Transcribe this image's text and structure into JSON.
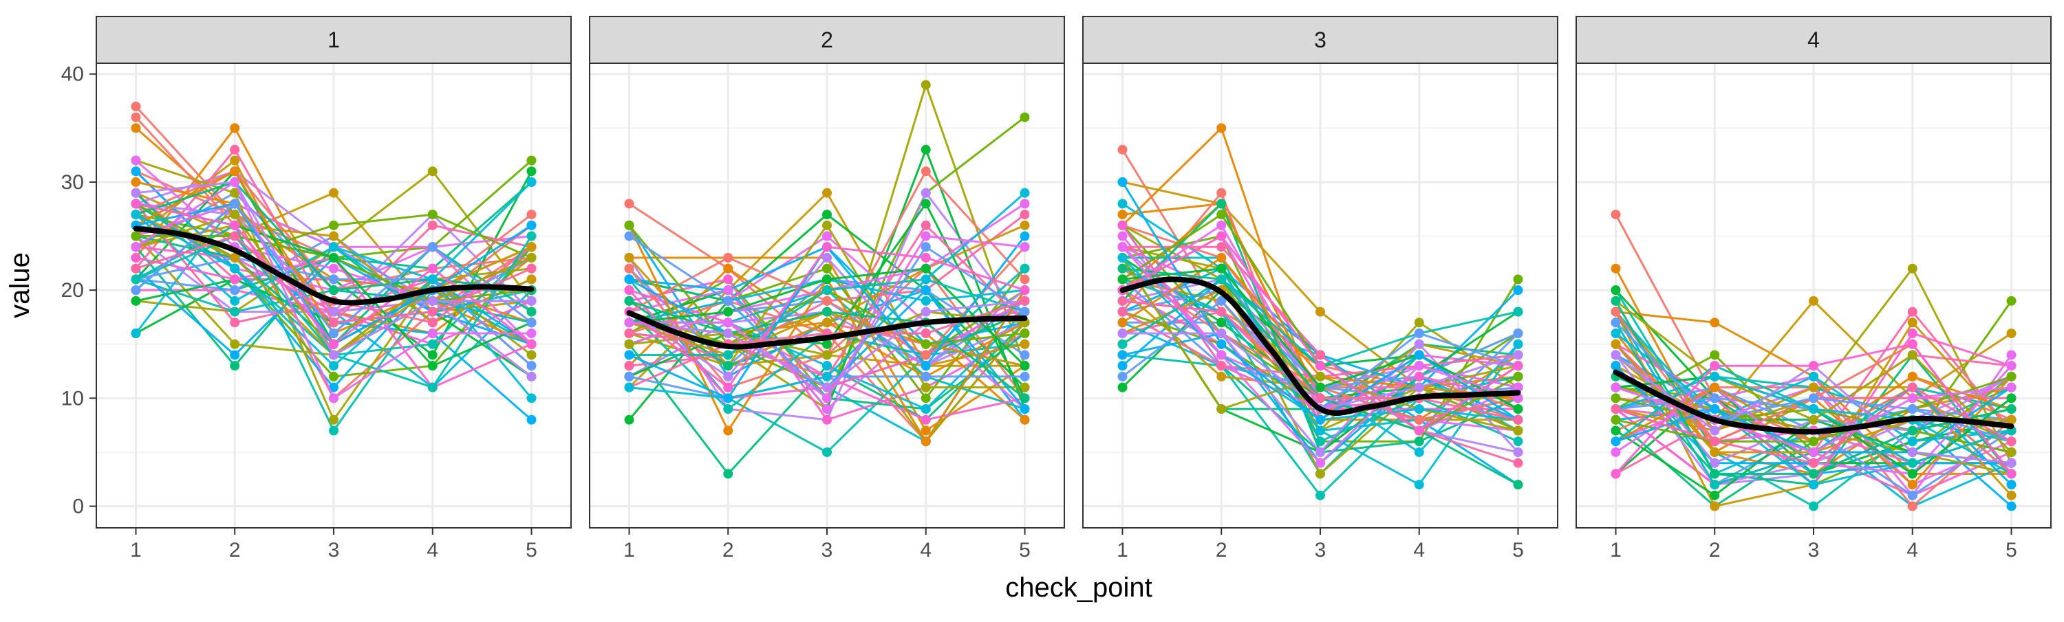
{
  "chart_data": {
    "type": "line",
    "facet_variable": "",
    "panels": [
      "1",
      "2",
      "3",
      "4"
    ],
    "xlabel": "check_point",
    "ylabel": "value",
    "x_ticks": [
      "1",
      "2",
      "3",
      "4",
      "5"
    ],
    "y_ticks": [
      "0",
      "10",
      "20",
      "30",
      "40"
    ],
    "xlim": [
      0.6,
      5.4
    ],
    "ylim": [
      -2,
      41
    ],
    "grid": true,
    "legend": "none",
    "n_series_per_panel": 60,
    "smooth": {
      "name": "",
      "color": "#000000",
      "panels": [
        {
          "panel": "1",
          "x": [
            1,
            1.5,
            2,
            2.5,
            3,
            3.5,
            4,
            4.5,
            5
          ],
          "y": [
            25.7,
            25.1,
            23.7,
            21.2,
            19.0,
            19.1,
            20.0,
            20.3,
            20.1
          ]
        },
        {
          "panel": "2",
          "x": [
            1,
            1.5,
            2,
            2.5,
            3,
            3.5,
            4,
            4.5,
            5
          ],
          "y": [
            17.9,
            16.0,
            14.8,
            15.1,
            15.6,
            16.3,
            17.0,
            17.3,
            17.4
          ]
        },
        {
          "panel": "3",
          "x": [
            1,
            1.5,
            2,
            2.5,
            3,
            3.5,
            4,
            4.5,
            5
          ],
          "y": [
            20.0,
            21.0,
            19.8,
            14.5,
            9.0,
            9.2,
            10.1,
            10.3,
            10.5
          ]
        },
        {
          "panel": "4",
          "x": [
            1,
            1.5,
            2,
            2.5,
            3,
            3.5,
            4,
            4.5,
            5
          ],
          "y": [
            12.4,
            10.0,
            8.0,
            7.2,
            6.9,
            7.4,
            8.1,
            7.9,
            7.4
          ]
        }
      ]
    },
    "distribution": [
      {
        "panel": "1",
        "mean": [
          25.6,
          23.7,
          19.0,
          20.0,
          20.1
        ],
        "min": [
          16,
          13,
          7,
          11,
          8
        ],
        "max": [
          37,
          35,
          29,
          31,
          32
        ]
      },
      {
        "panel": "2",
        "mean": [
          17.9,
          14.8,
          15.6,
          17.0,
          17.4
        ],
        "min": [
          8,
          3,
          5,
          6,
          8
        ],
        "max": [
          28,
          23,
          29,
          39,
          36
        ]
      },
      {
        "panel": "3",
        "mean": [
          20.0,
          19.8,
          9.0,
          10.1,
          10.5
        ],
        "min": [
          11,
          9,
          1,
          2,
          2
        ],
        "max": [
          33,
          35,
          18,
          17,
          21
        ]
      },
      {
        "panel": "4",
        "mean": [
          12.4,
          8.0,
          6.9,
          8.1,
          7.4
        ],
        "min": [
          3,
          0,
          0,
          0,
          0
        ],
        "max": [
          27,
          17,
          19,
          22,
          19
        ]
      }
    ],
    "palette": [
      "#F8766D",
      "#E58700",
      "#C99800",
      "#A3A500",
      "#6BB100",
      "#00BA38",
      "#00BF7D",
      "#00C0AF",
      "#00BCD8",
      "#00B0F6",
      "#619CFF",
      "#B983FF",
      "#E76BF3",
      "#FD61D1",
      "#FF67A4"
    ]
  }
}
